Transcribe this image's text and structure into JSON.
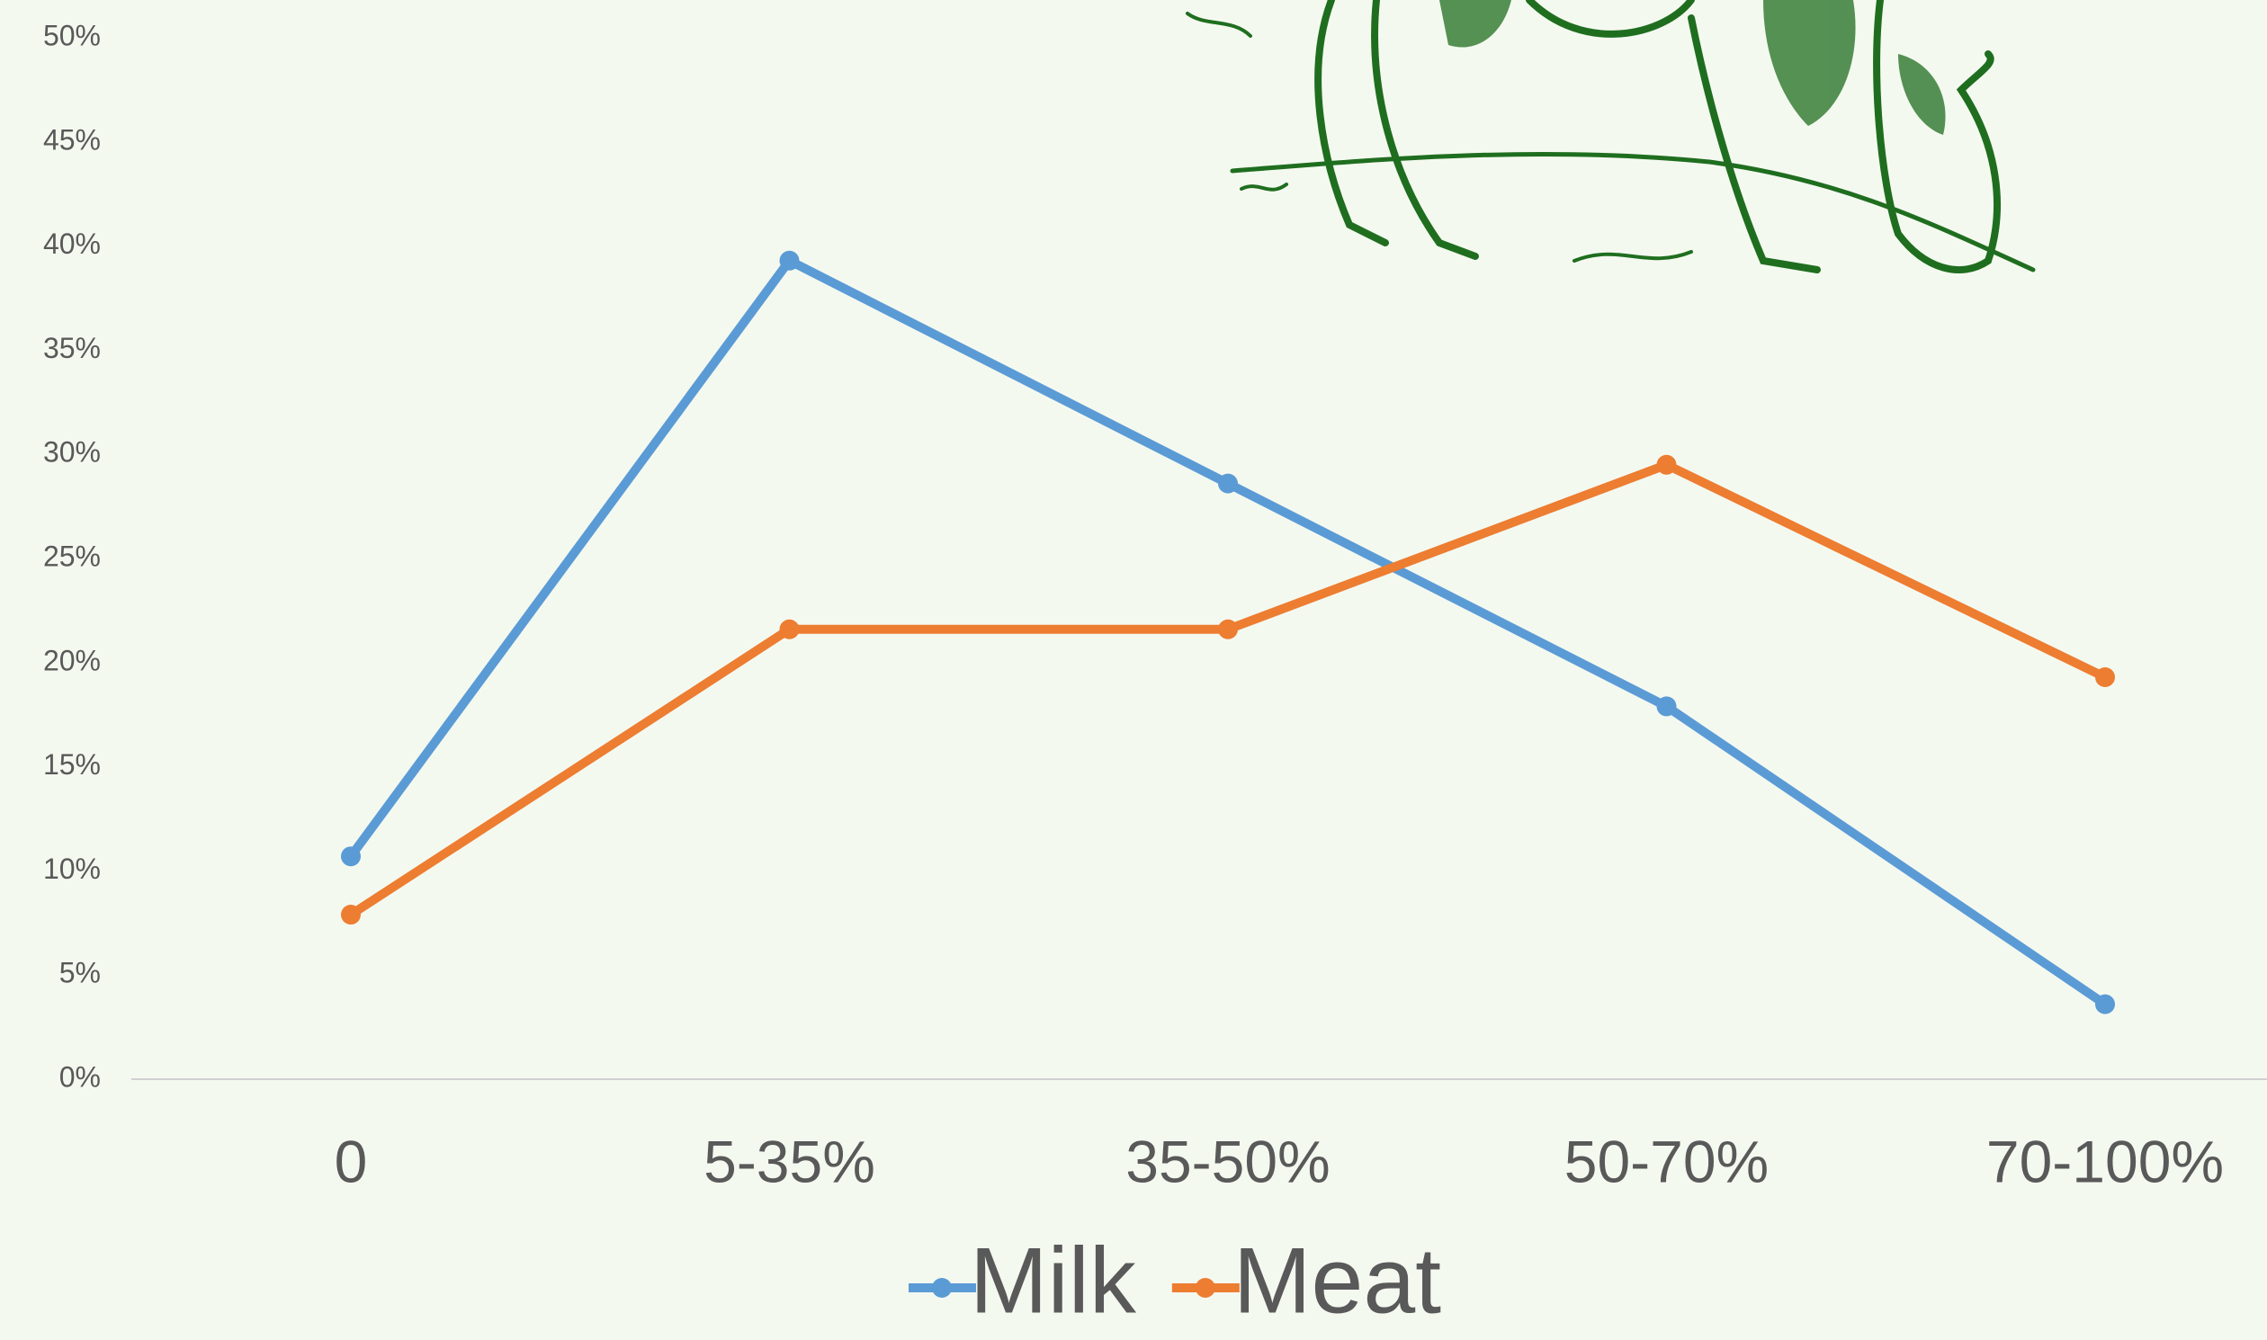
{
  "chart_data": {
    "type": "line",
    "categories": [
      "0",
      "5-35%",
      "35-50%",
      "50-70%",
      "70-100%"
    ],
    "series": [
      {
        "name": "Milk",
        "color": "#5b9bd5",
        "values": [
          10.7,
          39.3,
          28.6,
          17.9,
          3.6
        ]
      },
      {
        "name": "Meat",
        "color": "#ed7d31",
        "values": [
          7.9,
          21.6,
          21.6,
          29.5,
          19.3
        ]
      }
    ],
    "ylim": [
      0,
      50
    ],
    "yticks": [
      {
        "value": 0,
        "label": "0%"
      },
      {
        "value": 5,
        "label": "5%"
      },
      {
        "value": 10,
        "label": "10%"
      },
      {
        "value": 15,
        "label": "15%"
      },
      {
        "value": 20,
        "label": "20%"
      },
      {
        "value": 25,
        "label": "25%"
      },
      {
        "value": 30,
        "label": "30%"
      },
      {
        "value": 35,
        "label": "35%"
      },
      {
        "value": 40,
        "label": "40%"
      },
      {
        "value": 45,
        "label": "45%"
      },
      {
        "value": 50,
        "label": "50%"
      }
    ],
    "grid": false,
    "legend": "bottom"
  }
}
